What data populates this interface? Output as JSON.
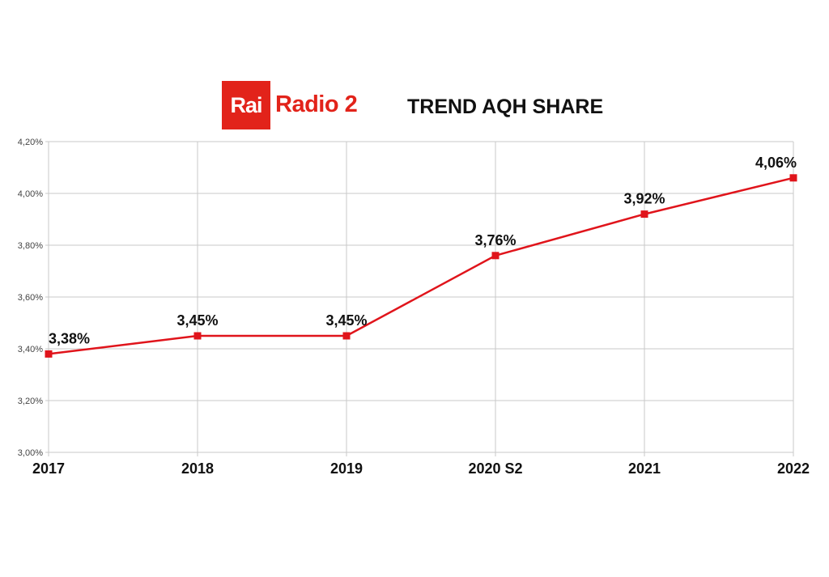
{
  "logo": {
    "box_text": "Rai",
    "text": "Radio 2",
    "color": "#e2231a"
  },
  "chart_data": {
    "type": "line",
    "title": "TREND AQH SHARE",
    "categories": [
      "2017",
      "2018",
      "2019",
      "2020 S2",
      "2021",
      "2022"
    ],
    "series": [
      {
        "values": [
          3.38,
          3.45,
          3.45,
          3.76,
          3.92,
          4.06
        ],
        "color": "#e0141b"
      }
    ],
    "data_labels": [
      "3,38%",
      "3,45%",
      "3,45%",
      "3,76%",
      "3,92%",
      "4,06%"
    ],
    "yticks": [
      "3,00%",
      "3,20%",
      "3,40%",
      "3,60%",
      "3,80%",
      "4,00%",
      "4,20%"
    ],
    "ylim": [
      3.0,
      4.2
    ],
    "grid": true,
    "legend": "none"
  }
}
